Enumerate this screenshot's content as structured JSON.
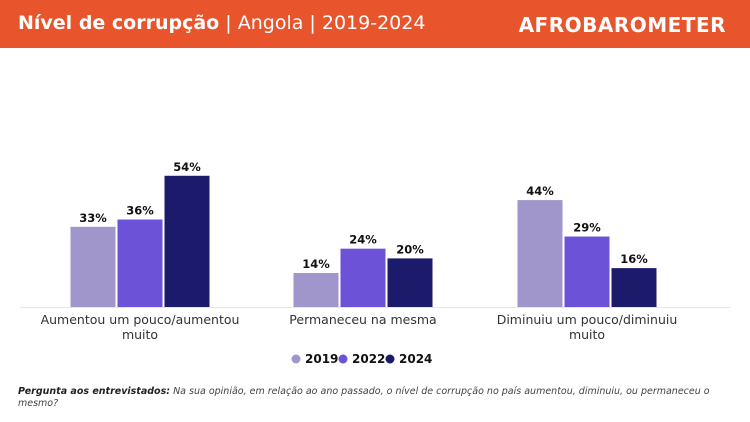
{
  "header": {
    "title_bold": "Nível de corrupção",
    "title_rest": " | Angola | 2019-2024",
    "logo": "AFROBAROMETER",
    "background": "#e8552d"
  },
  "chart_data": {
    "type": "bar",
    "title": "Nível de corrupção | Angola | 2019-2024",
    "categories": [
      "Aumentou um pouco/aumentou muito",
      "Permaneceu na mesma",
      "Diminuiu um pouco/diminuiu muito"
    ],
    "category_lines": [
      [
        "Aumentou um pouco/aumentou",
        "muito"
      ],
      [
        "Permaneceu na mesma"
      ],
      [
        "Diminuiu um pouco/diminuiu",
        "muito"
      ]
    ],
    "series": [
      {
        "name": "2019",
        "color": "#a196cc",
        "values": [
          33,
          14,
          44
        ]
      },
      {
        "name": "2022",
        "color": "#6c52d6",
        "values": [
          36,
          24,
          29
        ]
      },
      {
        "name": "2024",
        "color": "#1c1a6b",
        "values": [
          54,
          20,
          16
        ]
      }
    ],
    "value_suffix": "%",
    "xlabel": "",
    "ylabel": "",
    "ylim": [
      0,
      60
    ],
    "grid": false,
    "legend": "bottom-center"
  },
  "footnote": {
    "label": "Pergunta aos entrevistados:",
    "text": " Na sua opinião, em relação ao ano passado, o nível de corrupção no país aumentou, diminuiu, ou permaneceu o mesmo?"
  }
}
